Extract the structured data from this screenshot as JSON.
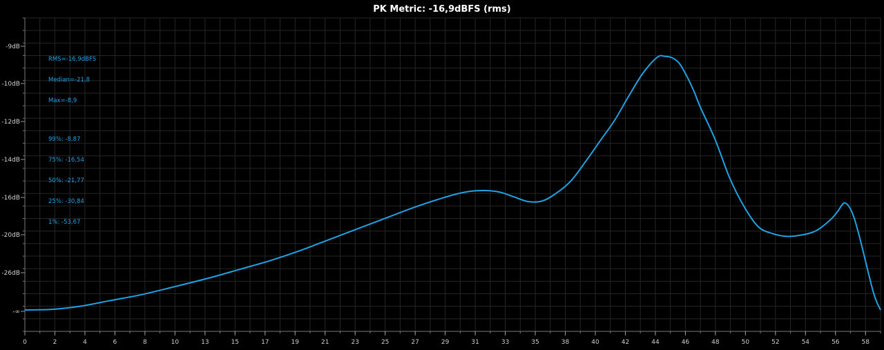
{
  "chart_data": {
    "type": "line",
    "title": "PK Metric: -16,9dBFS (rms)",
    "xlabel": "",
    "ylabel": "",
    "x_tick_labels": [
      "0",
      "2",
      "4",
      "6",
      "8",
      "10",
      "13",
      "15",
      "17",
      "19",
      "21",
      "23",
      "25",
      "27",
      "29",
      "31",
      "33",
      "35",
      "38",
      "40",
      "42",
      "44",
      "46",
      "48",
      "50",
      "52",
      "54",
      "56",
      "58"
    ],
    "y_tick_labels": [
      "-9dB",
      "-10dB",
      "-12dB",
      "-14dB",
      "-16dB",
      "-20dB",
      "-26dB",
      "-∞"
    ],
    "grid": true,
    "stats": {
      "rms": "RMS=-16,9dBFS",
      "median": "Median=-21,8",
      "max": "Max=-8,9",
      "p99": "99%: -8,87",
      "p75": "75%: -16,54",
      "p50": "50%: -21,77",
      "p25": "25%: -30,84",
      "p1": "1%: -53,67"
    },
    "series": [
      {
        "color": "#1fa3e6",
        "x": [
          0,
          2,
          4,
          6,
          8,
          10,
          13,
          15,
          17,
          19,
          21,
          23,
          25,
          27,
          29,
          30,
          31,
          32,
          33,
          34,
          35,
          36,
          37,
          38,
          39,
          40,
          41,
          42,
          43,
          44,
          44.5,
          45,
          45.5,
          46,
          46.5,
          47,
          48,
          49,
          50,
          51,
          52,
          53,
          54,
          55,
          56,
          56.5,
          57,
          57.5,
          58,
          59,
          59.5
        ],
        "y_level": [
          0.0,
          0.005,
          0.03,
          0.07,
          0.11,
          0.16,
          0.24,
          0.3,
          0.36,
          0.43,
          0.51,
          0.59,
          0.67,
          0.75,
          0.82,
          0.85,
          0.871,
          0.876,
          0.865,
          0.83,
          0.795,
          0.8,
          0.86,
          0.95,
          1.09,
          1.24,
          1.39,
          1.57,
          1.74,
          1.855,
          1.86,
          1.85,
          1.81,
          1.72,
          1.61,
          1.48,
          1.25,
          0.97,
          0.76,
          0.61,
          0.56,
          0.54,
          0.55,
          0.58,
          0.66,
          0.72,
          0.785,
          0.72,
          0.55,
          0.13,
          0.0
        ]
      }
    ]
  }
}
